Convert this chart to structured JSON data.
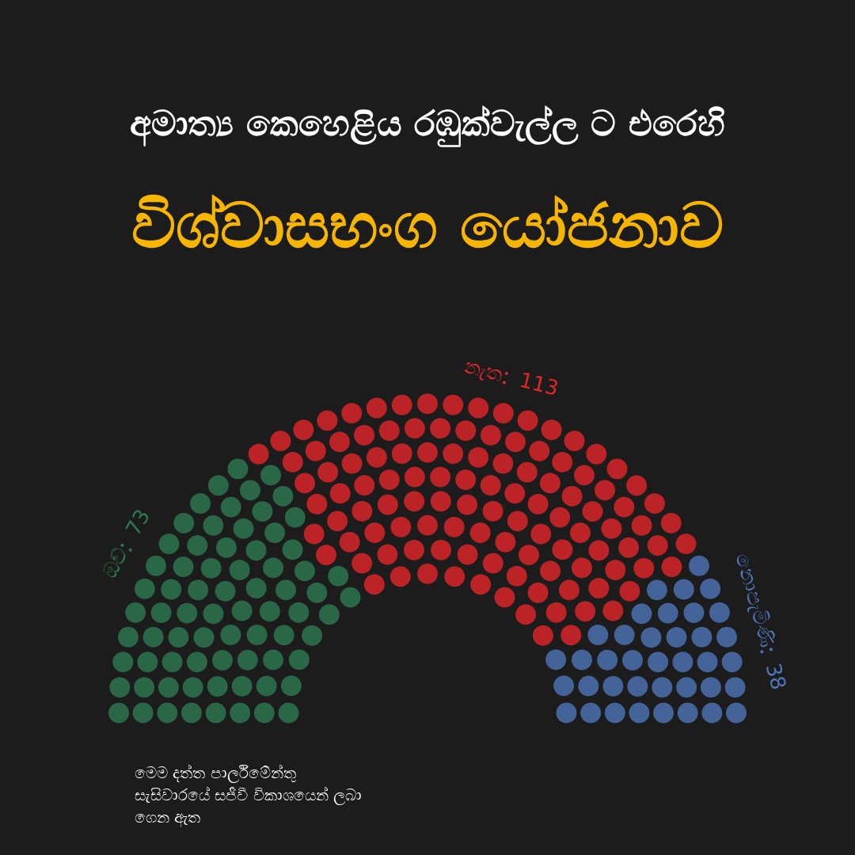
{
  "chart_data": {
    "type": "other",
    "title": "අමාත්‍ය කෙහෙළිය රඹුක්වැල්ල ට එරෙහි",
    "subtitle": "විශ්වාසභංග යෝජනාව",
    "categories": [
      "ඔව්",
      "නැත",
      "නොපැමිණි"
    ],
    "values": [
      73,
      113,
      38
    ],
    "colors": [
      "#2e7a52",
      "#e3262a",
      "#4f76b8"
    ],
    "data_labels": true,
    "annotations": [
      "මෙම දත්ත පාර්ලිමේන්තු සැසිවාරයේ සජීවී විකාශයෙන් ලබා ගෙන ඇත"
    ]
  }
}
